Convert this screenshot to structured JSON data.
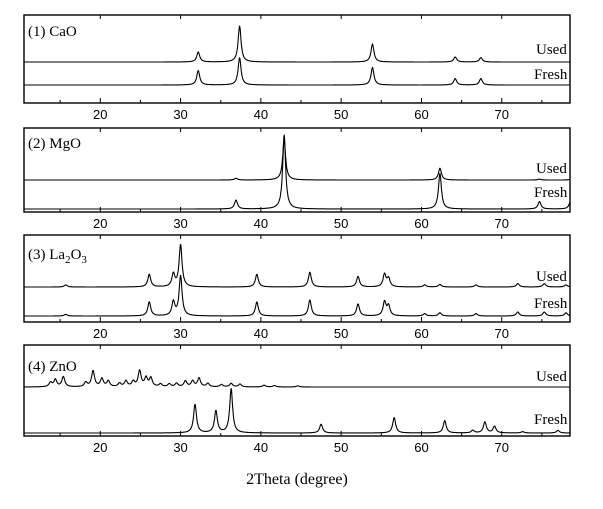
{
  "chart_data": {
    "type": "line",
    "xlabel": "2Theta (degree)",
    "xlim": [
      10.5,
      78.5
    ],
    "x_ticks": [
      20,
      30,
      40,
      50,
      60,
      70
    ],
    "panels": [
      {
        "label": "(1) CaO",
        "series": [
          {
            "name": "Used",
            "peaks": [
              [
                32.2,
                0.28
              ],
              [
                37.35,
                1.0
              ],
              [
                53.9,
                0.5
              ],
              [
                64.2,
                0.14
              ],
              [
                67.4,
                0.12
              ]
            ]
          },
          {
            "name": "Fresh",
            "peaks": [
              [
                32.2,
                0.45
              ],
              [
                37.35,
                0.85
              ],
              [
                53.9,
                0.55
              ],
              [
                64.2,
                0.2
              ],
              [
                67.4,
                0.2
              ]
            ]
          }
        ]
      },
      {
        "label": "(2) MgO",
        "series": [
          {
            "name": "Used",
            "peaks": [
              [
                36.9,
                0.04
              ],
              [
                42.9,
                0.95
              ],
              [
                62.3,
                0.28
              ],
              [
                74.7,
                0.02
              ],
              [
                78.6,
                0.02
              ]
            ]
          },
          {
            "name": "Fresh",
            "peaks": [
              [
                36.9,
                0.12
              ],
              [
                42.9,
                1.0
              ],
              [
                62.3,
                0.48
              ],
              [
                74.7,
                0.1
              ],
              [
                78.6,
                0.12
              ]
            ]
          }
        ]
      },
      {
        "label": "(3) La2O3",
        "label_base": "(3) La",
        "label_sub1": "2",
        "label_mid": "O",
        "label_sub2": "3",
        "series": [
          {
            "name": "Used",
            "peaks": [
              [
                15.7,
                0.05
              ],
              [
                26.1,
                0.3
              ],
              [
                29.1,
                0.3
              ],
              [
                30.0,
                1.0
              ],
              [
                39.5,
                0.3
              ],
              [
                46.1,
                0.35
              ],
              [
                52.1,
                0.25
              ],
              [
                55.4,
                0.3
              ],
              [
                55.9,
                0.2
              ],
              [
                60.4,
                0.05
              ],
              [
                62.3,
                0.06
              ],
              [
                66.8,
                0.05
              ],
              [
                72.0,
                0.08
              ],
              [
                75.3,
                0.08
              ],
              [
                78.0,
                0.05
              ]
            ]
          },
          {
            "name": "Fresh",
            "peaks": [
              [
                15.7,
                0.04
              ],
              [
                26.1,
                0.35
              ],
              [
                29.1,
                0.35
              ],
              [
                30.0,
                1.0
              ],
              [
                39.5,
                0.35
              ],
              [
                46.1,
                0.4
              ],
              [
                52.1,
                0.3
              ],
              [
                55.4,
                0.35
              ],
              [
                55.9,
                0.25
              ],
              [
                60.4,
                0.06
              ],
              [
                62.3,
                0.08
              ],
              [
                66.8,
                0.06
              ],
              [
                72.0,
                0.1
              ],
              [
                75.3,
                0.1
              ],
              [
                78.0,
                0.08
              ]
            ]
          }
        ]
      },
      {
        "label": "(4) ZnO",
        "series": [
          {
            "name": "Used",
            "peaks": [
              [
                13.8,
                0.15
              ],
              [
                14.4,
                0.25
              ],
              [
                15.4,
                0.35
              ],
              [
                18.2,
                0.15
              ],
              [
                19.1,
                0.55
              ],
              [
                20.2,
                0.28
              ],
              [
                21.0,
                0.2
              ],
              [
                22.4,
                0.12
              ],
              [
                23.2,
                0.2
              ],
              [
                24.1,
                0.18
              ],
              [
                24.9,
                0.55
              ],
              [
                25.7,
                0.3
              ],
              [
                26.3,
                0.3
              ],
              [
                27.5,
                0.1
              ],
              [
                28.6,
                0.1
              ],
              [
                29.5,
                0.12
              ],
              [
                30.6,
                0.2
              ],
              [
                31.5,
                0.2
              ],
              [
                32.3,
                0.3
              ],
              [
                33.4,
                0.12
              ],
              [
                35.1,
                0.08
              ],
              [
                36.3,
                0.12
              ],
              [
                37.4,
                0.1
              ],
              [
                40.4,
                0.06
              ],
              [
                41.7,
                0.05
              ],
              [
                44.6,
                0.04
              ]
            ]
          },
          {
            "name": "Fresh",
            "peaks": [
              [
                31.8,
                0.65
              ],
              [
                34.4,
                0.5
              ],
              [
                36.3,
                1.0
              ],
              [
                47.5,
                0.2
              ],
              [
                56.6,
                0.35
              ],
              [
                62.9,
                0.28
              ],
              [
                66.4,
                0.06
              ],
              [
                67.9,
                0.25
              ],
              [
                69.1,
                0.15
              ],
              [
                72.6,
                0.03
              ],
              [
                77.0,
                0.06
              ]
            ]
          }
        ]
      }
    ]
  }
}
